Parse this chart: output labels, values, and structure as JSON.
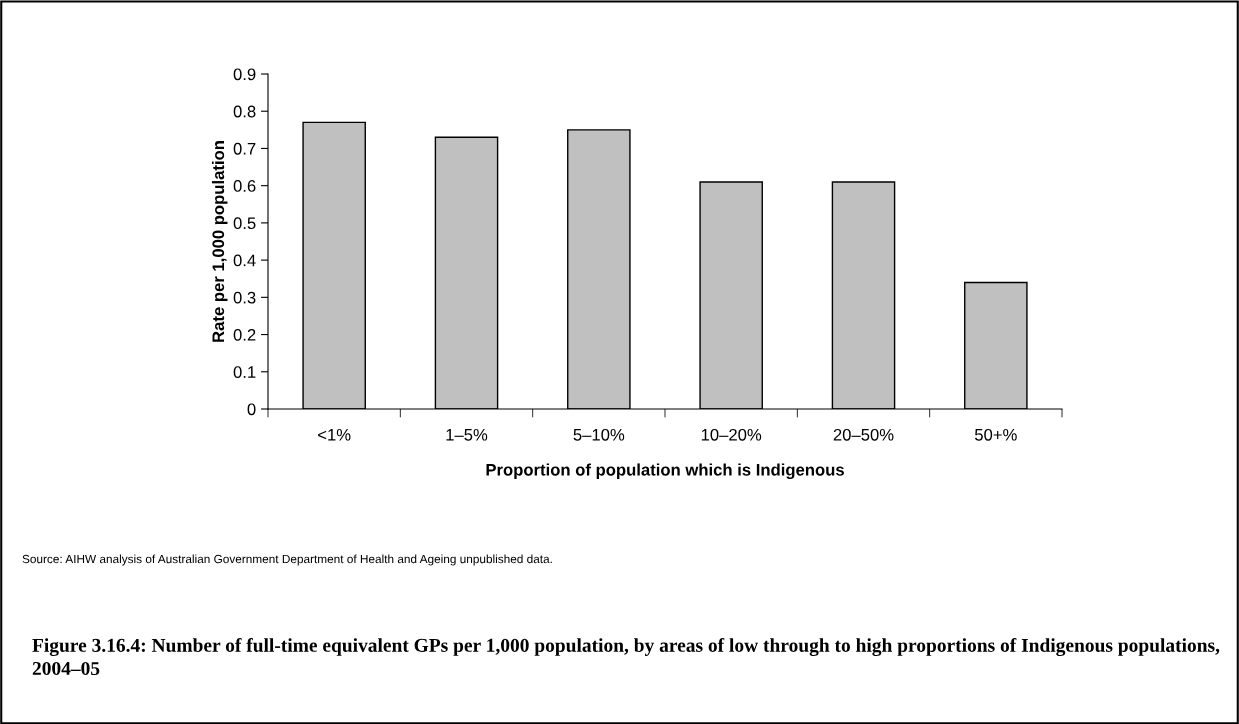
{
  "chart_data": {
    "type": "bar",
    "title": "Figure 3.16.4: Number of full-time equivalent GPs per 1,000 population, by areas of low through to high proportions of Indigenous populations, 2004–05",
    "xlabel": "Proportion of population which is Indigenous",
    "ylabel": "Rate per 1,000 population",
    "categories": [
      "<1%",
      "1–5%",
      "5–10%",
      "10–20%",
      "20–50%",
      "50+%"
    ],
    "values": [
      0.77,
      0.73,
      0.75,
      0.61,
      0.61,
      0.34
    ],
    "color": "#c0c0c0",
    "ylim": [
      0,
      0.9
    ],
    "yticks": [
      0,
      0.1,
      0.2,
      0.3,
      0.4,
      0.5,
      0.6,
      0.7,
      0.8,
      0.9
    ],
    "grid": false,
    "legend": false,
    "annotations": [
      "Source: AIHW analysis of Australian Government Department of Health and Ageing unpublished data."
    ]
  }
}
